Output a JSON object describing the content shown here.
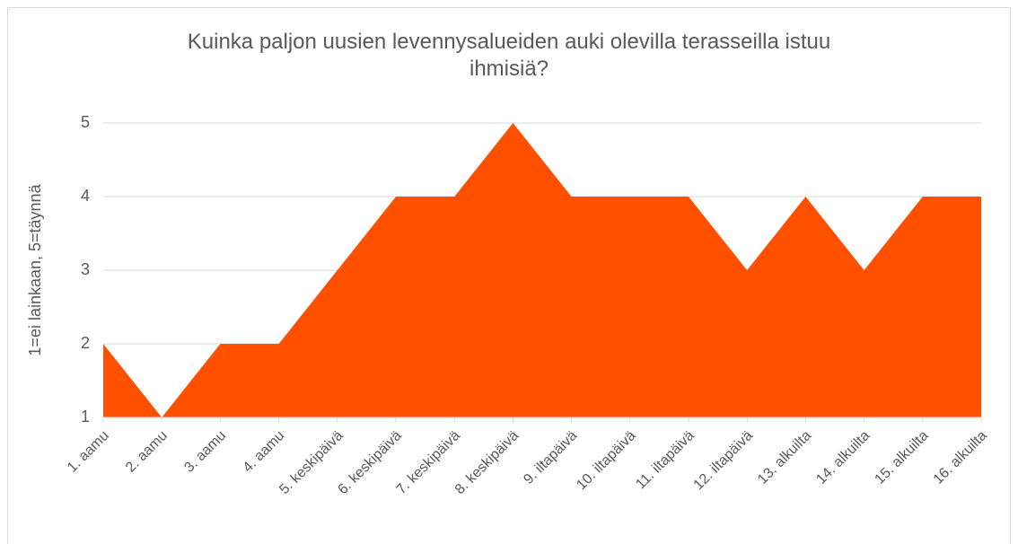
{
  "chart_data": {
    "type": "area",
    "title": "Kuinka paljon uusien levennysalueiden auki olevilla terasseilla istuu ihmisiä?",
    "y_label": "1=ei lainkaan, 5=täynnä",
    "categories": [
      "1. aamu",
      "2. aamu",
      "3. aamu",
      "4. aamu",
      "5. keskipäivä",
      "6. keskipäivä",
      "7. keskipäivä",
      "8. keskipäivä",
      "9. iltapäivä",
      "10. iltapäivä",
      "11. iltapäivä",
      "12. iltapäivä",
      "13. alkuilta",
      "14. alkuilta",
      "15. alkuilta",
      "16. alkuilta"
    ],
    "values": [
      2,
      1,
      2,
      2,
      3,
      4,
      4,
      5,
      4,
      4,
      4,
      3,
      4,
      3,
      4,
      4
    ],
    "color": "#ff5000",
    "ylim": [
      1,
      5
    ],
    "yticks": [
      1,
      2,
      3,
      4,
      5
    ],
    "grid": true
  }
}
